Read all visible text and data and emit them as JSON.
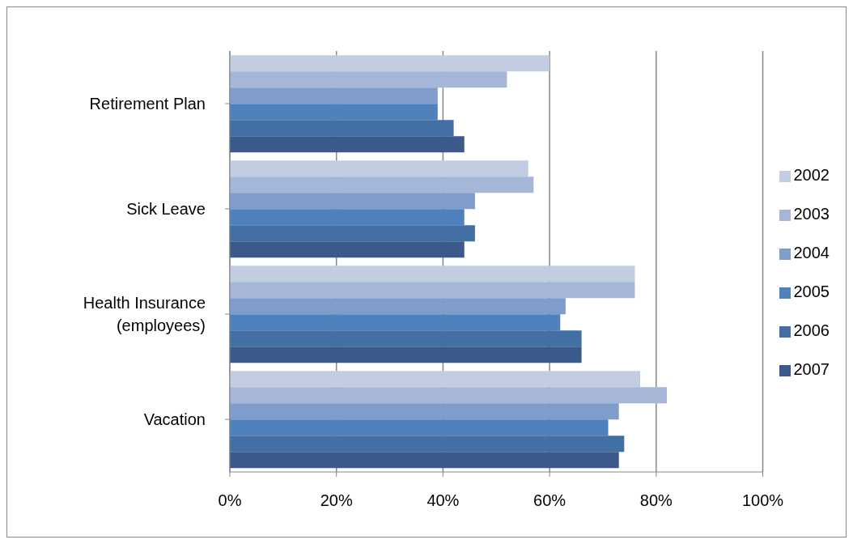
{
  "chart_data": {
    "type": "bar",
    "orientation": "horizontal",
    "categories": [
      "Retirement Plan",
      "Sick Leave",
      "Health Insurance (employees)",
      "Vacation"
    ],
    "series": [
      {
        "name": "2002",
        "color": "#c3cde2",
        "values": [
          60,
          56,
          76,
          77
        ]
      },
      {
        "name": "2003",
        "color": "#a5b6d8",
        "values": [
          52,
          57,
          76,
          82
        ]
      },
      {
        "name": "2004",
        "color": "#7f9ccb",
        "values": [
          39,
          46,
          63,
          73
        ]
      },
      {
        "name": "2005",
        "color": "#4f81bd",
        "values": [
          39,
          44,
          62,
          71
        ]
      },
      {
        "name": "2006",
        "color": "#426fa4",
        "values": [
          42,
          46,
          66,
          74
        ]
      },
      {
        "name": "2007",
        "color": "#3a5a8c",
        "values": [
          44,
          44,
          66,
          73
        ]
      }
    ],
    "xlim": [
      0,
      100
    ],
    "xticks": [
      {
        "value": 0,
        "label": "0%"
      },
      {
        "value": 20,
        "label": "20%"
      },
      {
        "value": 40,
        "label": "40%"
      },
      {
        "value": 60,
        "label": "60%"
      },
      {
        "value": 80,
        "label": "80%"
      },
      {
        "value": 100,
        "label": "100%"
      }
    ],
    "grid": "x",
    "legend": "right"
  }
}
